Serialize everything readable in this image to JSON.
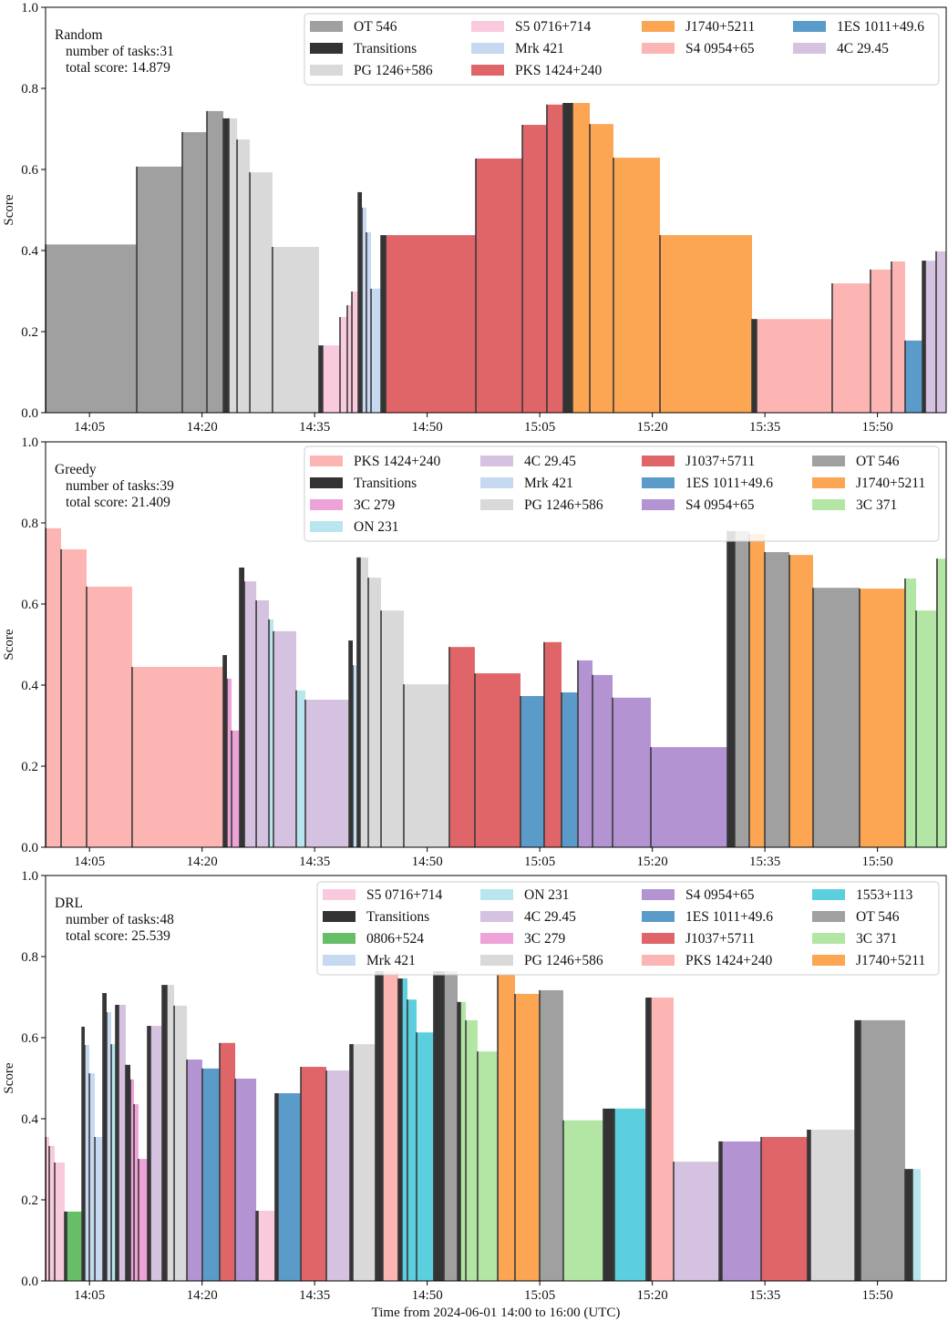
{
  "chart_data": {
    "type": "bar",
    "xlabel": "Time from 2024-06-01 14:00 to 16:00 (UTC)",
    "ylabel": "Score",
    "ylim": [
      0,
      1.0
    ],
    "yticks": [
      "0.0",
      "0.2",
      "0.4",
      "0.6",
      "0.8",
      "1.0"
    ],
    "xticks": [
      "14:05",
      "14:20",
      "14:35",
      "14:50",
      "15:05",
      "15:20",
      "15:35",
      "15:50"
    ],
    "grid": false,
    "legend_placement": "top-right",
    "bar_format": [
      "start_time",
      "score",
      "target"
    ],
    "panels": [
      {
        "title": "Random",
        "tasks_label": "number of tasks:31",
        "score_label": "total score: 14.879",
        "legend": [
          {
            "name": "OT 546",
            "color": "#a0a0a0"
          },
          {
            "name": "Transitions",
            "color": "#333333"
          },
          {
            "name": "PG 1246+586",
            "color": "#d9d9d9"
          },
          {
            "name": "S5 0716+714",
            "color": "#f9c9dd"
          },
          {
            "name": "Mrk 421",
            "color": "#c6d9f0"
          },
          {
            "name": "PKS 1424+240",
            "color": "#e06568"
          },
          {
            "name": "J1740+5211",
            "color": "#fca553"
          },
          {
            "name": "S4 0954+65",
            "color": "#fdb5b3"
          },
          {
            "name": "1ES 1011+49.6",
            "color": "#5a9bc9"
          },
          {
            "name": "4C 29.45",
            "color": "#d5c2e0"
          }
        ],
        "end_time": "15:59:09",
        "bars": [
          [
            "13:59:10",
            0.415,
            "OT 546"
          ],
          [
            "14:11:18",
            0.607,
            "OT 546"
          ],
          [
            "14:17:22",
            0.692,
            "OT 546"
          ],
          [
            "14:20:39",
            0.744,
            "OT 546"
          ],
          [
            "14:22:50",
            0.726,
            "Transitions"
          ],
          [
            "14:23:34",
            0.726,
            "PG 1246+586"
          ],
          [
            "14:24:40",
            0.674,
            "PG 1246+586"
          ],
          [
            "14:26:22",
            0.593,
            "PG 1246+586"
          ],
          [
            "14:29:23",
            0.409,
            "PG 1246+586"
          ],
          [
            "14:35:35",
            0.166,
            "Transitions"
          ],
          [
            "14:36:04",
            0.166,
            "S5 0716+714"
          ],
          [
            "14:38:23",
            0.236,
            "S5 0716+714"
          ],
          [
            "14:39:21",
            0.265,
            "S5 0716+714"
          ],
          [
            "14:39:58",
            0.299,
            "S5 0716+714"
          ],
          [
            "14:40:49",
            0.544,
            "Transitions"
          ],
          [
            "14:41:18",
            0.506,
            "Mrk 421"
          ],
          [
            "14:41:54",
            0.445,
            "Mrk 421"
          ],
          [
            "14:42:31",
            0.306,
            "Mrk 421"
          ],
          [
            "14:43:51",
            0.438,
            "Transitions"
          ],
          [
            "14:44:28",
            0.438,
            "PKS 1424+240"
          ],
          [
            "14:56:29",
            0.627,
            "PKS 1424+240"
          ],
          [
            "15:02:41",
            0.71,
            "PKS 1424+240"
          ],
          [
            "15:05:57",
            0.76,
            "PKS 1424+240"
          ],
          [
            "15:08:08",
            0.764,
            "Transitions"
          ],
          [
            "15:09:21",
            0.764,
            "J1740+5211"
          ],
          [
            "15:11:40",
            0.712,
            "J1740+5211"
          ],
          [
            "15:14:49",
            0.629,
            "J1740+5211"
          ],
          [
            "15:21:01",
            0.438,
            "J1740+5211"
          ],
          [
            "15:33:17",
            0.231,
            "Transitions"
          ],
          [
            "15:33:53",
            0.231,
            "S4 0954+65"
          ],
          [
            "15:43:58",
            0.319,
            "S4 0954+65"
          ],
          [
            "15:49:04",
            0.353,
            "S4 0954+65"
          ],
          [
            "15:51:52",
            0.373,
            "S4 0954+65"
          ],
          [
            "15:53:41",
            0.178,
            "1ES 1011+49.6"
          ],
          [
            "15:56:00",
            0.375,
            "Transitions"
          ],
          [
            "15:56:22",
            0.375,
            "4C 29.45"
          ],
          [
            "15:57:49",
            0.398,
            "4C 29.45"
          ]
        ]
      },
      {
        "title": "Greedy",
        "tasks_label": "number of tasks:39",
        "score_label": "total score: 21.409",
        "legend": [
          {
            "name": "PKS 1424+240",
            "color": "#fdb5b3"
          },
          {
            "name": "Transitions",
            "color": "#333333"
          },
          {
            "name": "3C 279",
            "color": "#eda3d7"
          },
          {
            "name": "ON 231",
            "color": "#b9e5ee"
          },
          {
            "name": "4C 29.45",
            "color": "#d5c2e0"
          },
          {
            "name": "Mrk 421",
            "color": "#c6d9f0"
          },
          {
            "name": "PG 1246+586",
            "color": "#d9d9d9"
          },
          {
            "name": "J1037+5711",
            "color": "#e06568"
          },
          {
            "name": "1ES 1011+49.6",
            "color": "#5a9bc9"
          },
          {
            "name": "S4 0954+65",
            "color": "#b393d2"
          },
          {
            "name": "OT 546",
            "color": "#a0a0a0"
          },
          {
            "name": "J1740+5211",
            "color": "#fca553"
          },
          {
            "name": "3C 371",
            "color": "#b3e6a5"
          }
        ],
        "end_time": "15:59:09",
        "bars": [
          [
            "13:59:10",
            0.787,
            "PKS 1424+240"
          ],
          [
            "14:01:13",
            0.735,
            "PKS 1424+240"
          ],
          [
            "14:04:37",
            0.643,
            "PKS 1424+240"
          ],
          [
            "14:10:41",
            0.445,
            "PKS 1424+240"
          ],
          [
            "14:22:50",
            0.474,
            "Transitions"
          ],
          [
            "14:23:19",
            0.416,
            "3C 279"
          ],
          [
            "14:23:56",
            0.288,
            "3C 279"
          ],
          [
            "14:25:01",
            0.69,
            "Transitions"
          ],
          [
            "14:25:38",
            0.656,
            "4C 29.45"
          ],
          [
            "14:27:13",
            0.609,
            "4C 29.45"
          ],
          [
            "14:28:55",
            0.562,
            "ON 231"
          ],
          [
            "14:29:31",
            0.533,
            "4C 29.45"
          ],
          [
            "14:32:33",
            0.387,
            "ON 231"
          ],
          [
            "14:33:46",
            0.364,
            "4C 29.45"
          ],
          [
            "14:39:36",
            0.51,
            "Transitions"
          ],
          [
            "14:40:05",
            0.449,
            "Mrk 421"
          ],
          [
            "14:40:41",
            0.715,
            "Transitions"
          ],
          [
            "14:41:03",
            0.715,
            "PG 1246+586"
          ],
          [
            "14:42:09",
            0.665,
            "PG 1246+586"
          ],
          [
            "14:43:51",
            0.584,
            "PG 1246+586"
          ],
          [
            "14:46:53",
            0.402,
            "PG 1246+586"
          ],
          [
            "14:52:57",
            0.494,
            "J1037+5711"
          ],
          [
            "14:56:21",
            0.429,
            "J1037+5711"
          ],
          [
            "15:02:26",
            0.373,
            "1ES 1011+49.6"
          ],
          [
            "15:05:35",
            0.506,
            "J1037+5711"
          ],
          [
            "15:07:54",
            0.382,
            "1ES 1011+49.6"
          ],
          [
            "15:10:05",
            0.461,
            "S4 0954+65"
          ],
          [
            "15:12:02",
            0.425,
            "S4 0954+65"
          ],
          [
            "15:14:42",
            0.369,
            "S4 0954+65"
          ],
          [
            "15:19:48",
            0.247,
            "S4 0954+65"
          ],
          [
            "15:30:00",
            0.78,
            "Transitions"
          ],
          [
            "15:30:58",
            0.78,
            "OT 546"
          ],
          [
            "15:32:55",
            0.773,
            "J1740+5211"
          ],
          [
            "15:34:59",
            0.728,
            "OT 546"
          ],
          [
            "15:38:16",
            0.721,
            "J1740+5211"
          ],
          [
            "15:41:25",
            0.64,
            "OT 546"
          ],
          [
            "15:47:37",
            0.638,
            "J1740+5211"
          ],
          [
            "15:53:41",
            0.663,
            "3C 371"
          ],
          [
            "15:55:09",
            0.584,
            "3C 371"
          ],
          [
            "15:57:56",
            0.712,
            "3C 371"
          ]
        ]
      },
      {
        "title": "DRL",
        "tasks_label": "number of tasks:48",
        "score_label": "total score: 25.539",
        "legend": [
          {
            "name": "S5 0716+714",
            "color": "#f9c9dd"
          },
          {
            "name": "Transitions",
            "color": "#333333"
          },
          {
            "name": "0806+524",
            "color": "#66bf66"
          },
          {
            "name": "Mrk 421",
            "color": "#c6d9f0"
          },
          {
            "name": "ON 231",
            "color": "#b9e5ee"
          },
          {
            "name": "4C 29.45",
            "color": "#d5c2e0"
          },
          {
            "name": "3C 279",
            "color": "#eda3d7"
          },
          {
            "name": "PG 1246+586",
            "color": "#d9d9d9"
          },
          {
            "name": "S4 0954+65",
            "color": "#b393d2"
          },
          {
            "name": "1ES 1011+49.6",
            "color": "#5a9bc9"
          },
          {
            "name": "J1037+5711",
            "color": "#e06568"
          },
          {
            "name": "PKS 1424+240",
            "color": "#fdb5b3"
          },
          {
            "name": "1553+113",
            "color": "#5bcfdd"
          },
          {
            "name": "OT 546",
            "color": "#a0a0a0"
          },
          {
            "name": "3C 371",
            "color": "#b3e6a5"
          },
          {
            "name": "J1740+5211",
            "color": "#fca553"
          }
        ],
        "end_time": "15:55:45",
        "bars": [
          [
            "13:59:10",
            0.355,
            "S5 0716+714"
          ],
          [
            "13:59:38",
            0.333,
            "S5 0716+714"
          ],
          [
            "14:00:22",
            0.292,
            "S5 0716+714"
          ],
          [
            "14:01:42",
            0.171,
            "Transitions"
          ],
          [
            "14:01:57",
            0.171,
            "0806+524"
          ],
          [
            "14:04:01",
            0.627,
            "Transitions"
          ],
          [
            "14:04:22",
            0.582,
            "Mrk 421"
          ],
          [
            "14:04:59",
            0.512,
            "Mrk 421"
          ],
          [
            "14:05:43",
            0.355,
            "Mrk 421"
          ],
          [
            "14:06:48",
            0.71,
            "Transitions"
          ],
          [
            "14:07:17",
            0.663,
            "Mrk 421"
          ],
          [
            "14:07:54",
            0.584,
            "ON 231"
          ],
          [
            "14:08:30",
            0.681,
            "Transitions"
          ],
          [
            "14:08:52",
            0.681,
            "4C 29.45"
          ],
          [
            "14:09:50",
            0.533,
            "Transitions"
          ],
          [
            "14:10:27",
            0.497,
            "3C 279"
          ],
          [
            "14:10:56",
            0.436,
            "3C 279"
          ],
          [
            "14:11:32",
            0.301,
            "3C 279"
          ],
          [
            "14:12:45",
            0.629,
            "Transitions"
          ],
          [
            "14:13:07",
            0.629,
            "4C 29.45"
          ],
          [
            "14:14:42",
            0.73,
            "Transitions"
          ],
          [
            "14:15:18",
            0.73,
            "PG 1246+586"
          ],
          [
            "14:16:17",
            0.679,
            "PG 1246+586"
          ],
          [
            "14:17:59",
            0.546,
            "S4 0954+65"
          ],
          [
            "14:20:02",
            0.524,
            "1ES 1011+49.6"
          ],
          [
            "14:22:21",
            0.587,
            "J1037+5711"
          ],
          [
            "14:24:25",
            0.499,
            "S4 0954+65"
          ],
          [
            "14:27:13",
            0.173,
            "Transitions"
          ],
          [
            "14:27:27",
            0.173,
            "S5 0716+714"
          ],
          [
            "14:29:45",
            0.463,
            "Transitions"
          ],
          [
            "14:30:07",
            0.463,
            "1ES 1011+49.6"
          ],
          [
            "14:33:10",
            0.528,
            "J1037+5711"
          ],
          [
            "14:36:34",
            0.519,
            "4C 29.45"
          ],
          [
            "14:39:43",
            0.584,
            "Transitions"
          ],
          [
            "14:40:05",
            0.584,
            "PG 1246+586"
          ],
          [
            "14:43:07",
            0.764,
            "Transitions"
          ],
          [
            "14:44:05",
            0.764,
            "PKS 1424+240"
          ],
          [
            "14:46:09",
            0.746,
            "Transitions"
          ],
          [
            "14:46:38",
            0.746,
            "1553+113"
          ],
          [
            "14:47:22",
            0.694,
            "1553+113"
          ],
          [
            "14:48:35",
            0.613,
            "1553+113"
          ],
          [
            "14:50:53",
            0.764,
            "Transitions"
          ],
          [
            "14:52:14",
            0.764,
            "OT 546"
          ],
          [
            "14:54:03",
            0.688,
            "Transitions"
          ],
          [
            "14:54:25",
            0.688,
            "3C 371"
          ],
          [
            "14:55:09",
            0.643,
            "3C 371"
          ],
          [
            "14:56:43",
            0.566,
            "3C 371"
          ],
          [
            "14:59:24",
            0.755,
            "J1740+5211"
          ],
          [
            "15:01:42",
            0.708,
            "J1740+5211"
          ],
          [
            "15:04:59",
            0.717,
            "OT 546"
          ],
          [
            "15:08:08",
            0.396,
            "3C 371"
          ],
          [
            "15:13:29",
            0.425,
            "Transitions"
          ],
          [
            "15:14:56",
            0.425,
            "1553+113"
          ],
          [
            "15:19:11",
            0.699,
            "Transitions"
          ],
          [
            "15:19:48",
            0.699,
            "PKS 1424+240"
          ],
          [
            "15:22:50",
            0.294,
            "4C 29.45"
          ],
          [
            "15:28:55",
            0.344,
            "Transitions"
          ],
          [
            "15:29:16",
            0.344,
            "S4 0954+65"
          ],
          [
            "15:34:30",
            0.355,
            "J1037+5711"
          ],
          [
            "15:40:41",
            0.373,
            "Transitions"
          ],
          [
            "15:41:03",
            0.373,
            "PG 1246+586"
          ],
          [
            "15:47:01",
            0.643,
            "Transitions"
          ],
          [
            "15:47:44",
            0.643,
            "OT 546"
          ],
          [
            "15:53:41",
            0.276,
            "Transitions"
          ],
          [
            "15:54:39",
            0.276,
            "ON 231"
          ]
        ]
      }
    ]
  }
}
